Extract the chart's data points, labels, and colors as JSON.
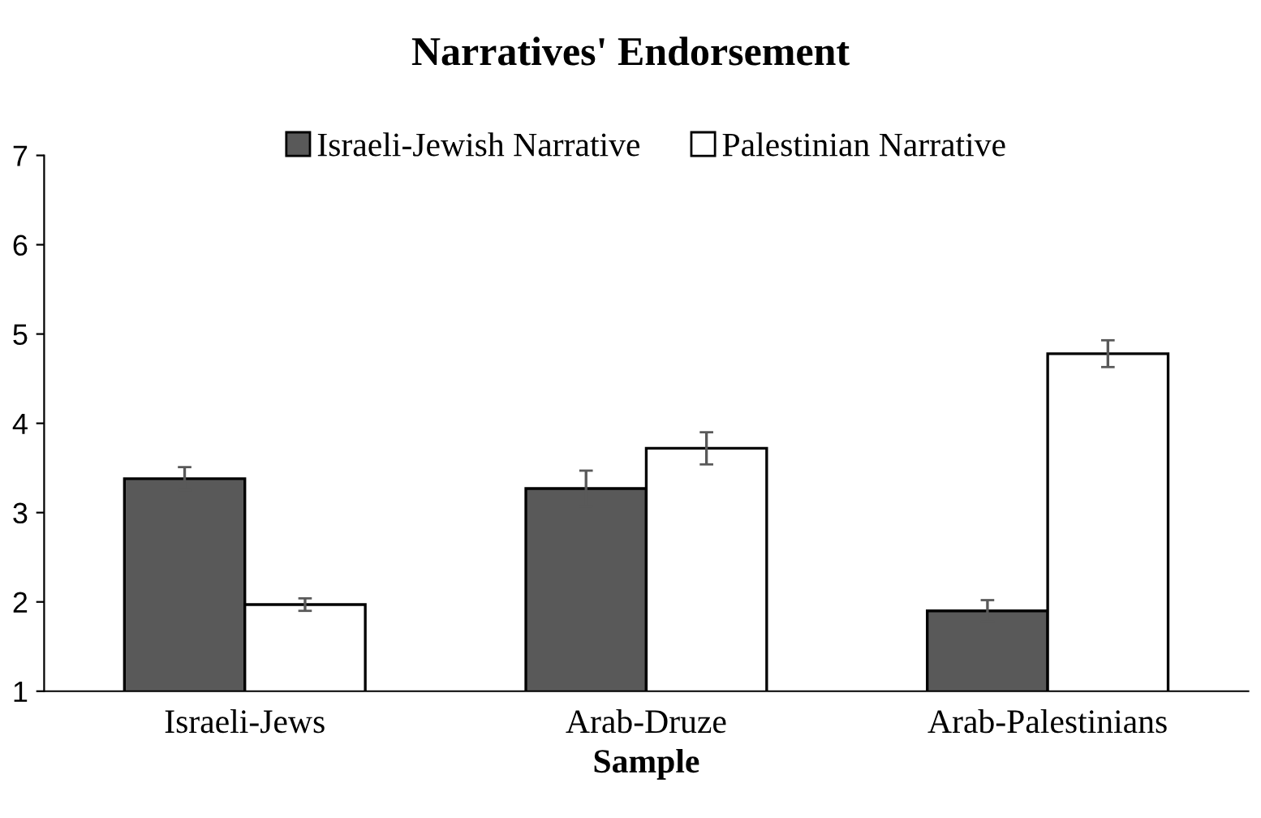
{
  "chart_data": {
    "type": "bar",
    "title": "Narratives' Endorsement",
    "xlabel": "Sample",
    "categories": [
      "Israeli-Jews",
      "Arab-Druze",
      "Arab-Palestinians"
    ],
    "series": [
      {
        "name": "Israeli-Jewish Narrative",
        "color": "#595959",
        "values": [
          3.38,
          3.27,
          1.9
        ],
        "errors": [
          0.13,
          0.2,
          0.12
        ]
      },
      {
        "name": "Palestinian Narrative",
        "color": "#ffffff",
        "values": [
          1.97,
          3.72,
          4.78
        ],
        "errors": [
          0.07,
          0.18,
          0.15
        ]
      }
    ],
    "ylim": [
      1,
      7
    ],
    "yticks": [
      1,
      2,
      3,
      4,
      5,
      6,
      7
    ],
    "grid": false,
    "legend": "top"
  }
}
